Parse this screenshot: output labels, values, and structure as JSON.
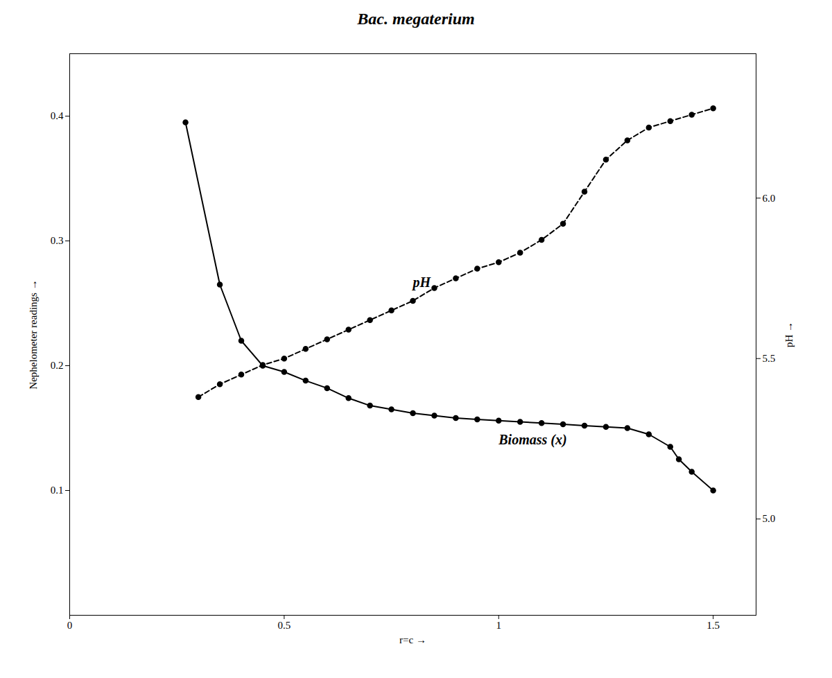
{
  "chart_data": {
    "type": "line",
    "title": "Bac. megaterium",
    "x_label": "r=c",
    "y_label": "Nephelometer readings",
    "y2_label": "pH",
    "xlim": [
      0,
      1.6
    ],
    "xticks": [
      0,
      0.5,
      1,
      1.5
    ],
    "ylim": [
      0,
      0.45
    ],
    "yticks": [
      0.1,
      0.2,
      0.3,
      0.4
    ],
    "y2lim": [
      4.7,
      6.45
    ],
    "y2ticks": [
      {
        "value": 5.0,
        "label": "5.0"
      },
      5.5,
      {
        "value": 6.0,
        "label": "6.0"
      }
    ],
    "grid": false,
    "series": [
      {
        "name": "Biomass (x)",
        "color": "black",
        "marker": "circle",
        "line_style": "solid",
        "x": [
          0.27,
          0.35,
          0.4,
          0.45,
          0.5,
          0.55,
          0.6,
          0.65,
          0.7,
          0.75,
          0.8,
          0.85,
          0.9,
          0.95,
          1.0,
          1.05,
          1.1,
          1.15,
          1.2,
          1.25,
          1.3,
          1.35,
          1.4,
          1.42,
          1.45,
          1.5
        ],
        "values": [
          0.395,
          0.265,
          0.22,
          0.2,
          0.195,
          0.188,
          0.182,
          0.174,
          0.168,
          0.165,
          0.162,
          0.16,
          0.158,
          0.157,
          0.156,
          0.155,
          0.154,
          0.153,
          0.152,
          0.151,
          0.15,
          0.145,
          0.135,
          0.125,
          0.115,
          0.1
        ]
      },
      {
        "name": "pH",
        "axis": "y2",
        "color": "black",
        "marker": "circle",
        "line_style": "dashed",
        "x": [
          0.3,
          0.35,
          0.4,
          0.45,
          0.5,
          0.55,
          0.6,
          0.65,
          0.7,
          0.75,
          0.8,
          0.85,
          0.9,
          0.95,
          1.0,
          1.05,
          1.1,
          1.15,
          1.2,
          1.25,
          1.3,
          1.35,
          1.4,
          1.45,
          1.5
        ],
        "values": [
          5.38,
          5.42,
          5.45,
          5.48,
          5.5,
          5.53,
          5.56,
          5.59,
          5.62,
          5.65,
          5.68,
          5.72,
          5.75,
          5.78,
          5.8,
          5.83,
          5.87,
          5.92,
          6.02,
          6.12,
          6.18,
          6.22,
          6.24,
          6.26,
          6.28
        ]
      }
    ]
  }
}
